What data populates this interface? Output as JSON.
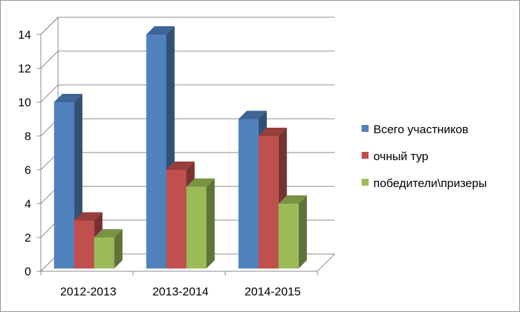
{
  "chart_data": {
    "type": "bar",
    "categories": [
      "2012-2013",
      "2013-2014",
      "2014-2015"
    ],
    "series": [
      {
        "name": "Всего участников",
        "values": [
          10,
          14,
          9
        ],
        "color": "#4f81bd"
      },
      {
        "name": "очный тур",
        "values": [
          3,
          6,
          8
        ],
        "color": "#c0504d"
      },
      {
        "name": "победители\\призеры",
        "values": [
          2,
          5,
          4
        ],
        "color": "#9bbb59"
      }
    ],
    "ylim": [
      0,
      14
    ],
    "yticks": [
      "0",
      "2",
      "4",
      "6",
      "8",
      "10",
      "12",
      "14"
    ],
    "grid": true,
    "legend": "right",
    "style": "3d-clustered-column"
  }
}
